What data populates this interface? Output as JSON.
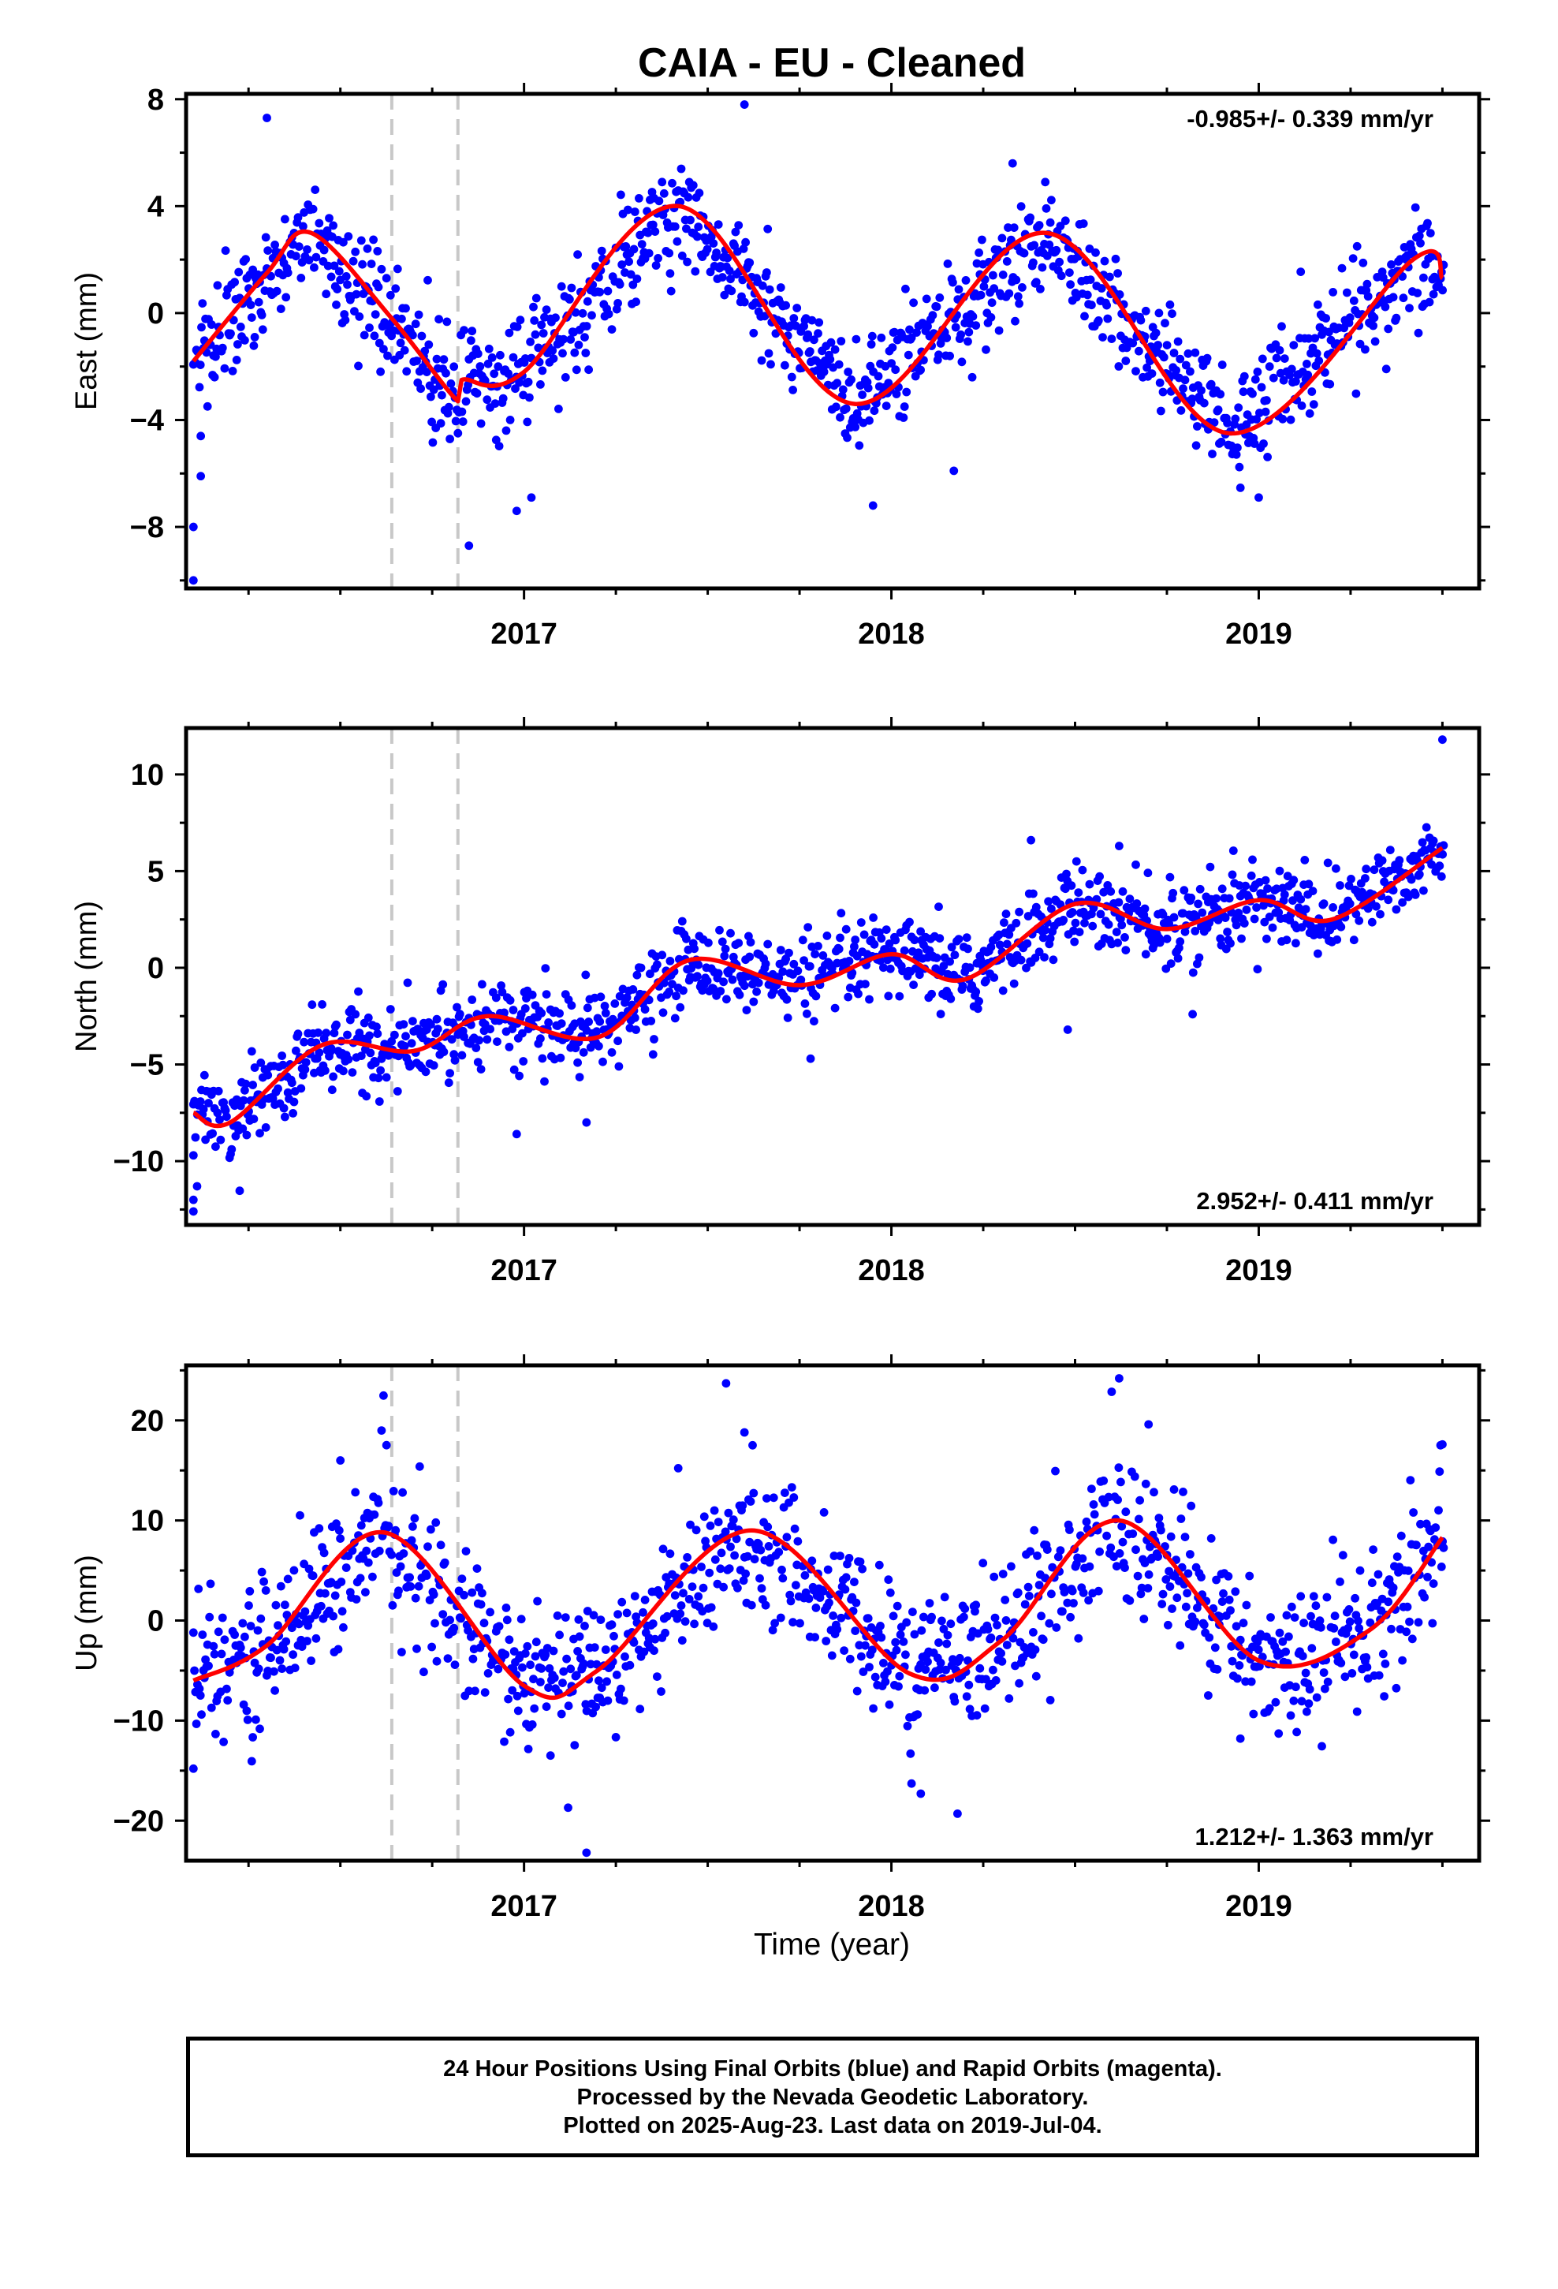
{
  "title": "CAIA  - EU - Cleaned",
  "xlabel": "Time (year)",
  "colors": {
    "data_points": "#0000ff",
    "model_curve": "#ff0000",
    "event_lines": "#c8c8c8",
    "axes": "#000000"
  },
  "caption": {
    "line1": "24 Hour Positions Using Final Orbits (blue) and Rapid Orbits (magenta).",
    "line2": "Processed by the Nevada Geodetic Laboratory.",
    "line3": "Plotted on 2025-Aug-23. Last data on 2019-Jul-04."
  },
  "chart_data": [
    {
      "type": "scatter",
      "name": "East",
      "ylabel": "East (mm)",
      "rate_label": "-0.985+/- 0.339 mm/yr",
      "rate_label_position": "top-right",
      "xlim": [
        2016.08,
        2019.6
      ],
      "ylim": [
        -10.3,
        8.2
      ],
      "yticks": [
        -8,
        -4,
        0,
        4,
        8
      ],
      "xticks": [
        2017,
        2018,
        2019
      ],
      "event_lines_x": [
        2016.64,
        2016.82
      ],
      "model": {
        "mean": 0.4,
        "rate": -0.985,
        "t0": 2017.8,
        "annual_cos": -2.55,
        "annual_sin": -2.45,
        "semiannual_cos": 0.3,
        "semiannual_sin": 0.2,
        "offset_at": 2016.82,
        "offset": 1.2,
        "start_transient": {
          "amplitude": -6,
          "tau": 0.03
        }
      },
      "samples": [
        {
          "x": 2016.1,
          "y": -1.8
        },
        {
          "x": 2016.3,
          "y": 1.5
        },
        {
          "x": 2016.42,
          "y": 3.0
        },
        {
          "x": 2016.64,
          "y": -0.2
        },
        {
          "x": 2016.82,
          "y": -3.3
        },
        {
          "x": 2016.83,
          "y": -2.5
        },
        {
          "x": 2017.0,
          "y": -2.2
        },
        {
          "x": 2017.42,
          "y": 4.0
        },
        {
          "x": 2017.9,
          "y": -3.4
        },
        {
          "x": 2018.42,
          "y": 3.0
        },
        {
          "x": 2018.92,
          "y": -4.5
        },
        {
          "x": 2019.42,
          "y": 2.0
        },
        {
          "x": 2019.5,
          "y": 1.3
        }
      ],
      "outliers": [
        {
          "x": 2016.1,
          "y": -10.0
        },
        {
          "x": 2016.1,
          "y": -8.0
        },
        {
          "x": 2016.12,
          "y": -6.1
        },
        {
          "x": 2016.12,
          "y": -4.6
        },
        {
          "x": 2016.3,
          "y": 7.3
        },
        {
          "x": 2016.85,
          "y": -8.7
        },
        {
          "x": 2016.98,
          "y": -7.4
        },
        {
          "x": 2017.02,
          "y": -6.9
        },
        {
          "x": 2017.6,
          "y": 7.8
        },
        {
          "x": 2017.95,
          "y": -7.2
        },
        {
          "x": 2018.17,
          "y": -5.9
        },
        {
          "x": 2019.0,
          "y": -6.9
        },
        {
          "x": 2018.33,
          "y": 5.6
        },
        {
          "x": 2018.22,
          "y": -2.4
        }
      ]
    },
    {
      "type": "scatter",
      "name": "North",
      "ylabel": "North (mm)",
      "rate_label": "2.952+/- 0.411 mm/yr",
      "rate_label_position": "bottom-right",
      "xlim": [
        2016.08,
        2019.6
      ],
      "ylim": [
        -13.3,
        12.4
      ],
      "yticks": [
        -10,
        -5,
        0,
        5,
        10
      ],
      "xticks": [
        2017,
        2018,
        2019
      ],
      "event_lines_x": [
        2016.64,
        2016.82
      ],
      "model": {
        "mean": 0.0,
        "rate": 2.952,
        "t0": 2017.8,
        "annual_cos": -0.6,
        "annual_sin": 0.9,
        "semiannual_cos": 0.8,
        "semiannual_sin": 0.2,
        "offset_at": 2016.64,
        "offset": 0.5,
        "start_transient": {
          "amplitude": 0,
          "tau": 0.03
        }
      },
      "samples": [
        {
          "x": 2016.1,
          "y": -7.5
        },
        {
          "x": 2016.2,
          "y": -8.0
        },
        {
          "x": 2016.45,
          "y": -4.0
        },
        {
          "x": 2016.7,
          "y": -4.3
        },
        {
          "x": 2016.9,
          "y": -2.5
        },
        {
          "x": 2017.2,
          "y": -3.6
        },
        {
          "x": 2017.45,
          "y": 0.4
        },
        {
          "x": 2017.75,
          "y": -0.9
        },
        {
          "x": 2018.0,
          "y": 0.7
        },
        {
          "x": 2018.2,
          "y": -0.6
        },
        {
          "x": 2018.5,
          "y": 3.3
        },
        {
          "x": 2018.75,
          "y": 2.0
        },
        {
          "x": 2019.0,
          "y": 3.5
        },
        {
          "x": 2019.2,
          "y": 2.5
        },
        {
          "x": 2019.5,
          "y": 6.2
        }
      ],
      "outliers": [
        {
          "x": 2016.1,
          "y": -12.6
        },
        {
          "x": 2016.1,
          "y": -12.0
        },
        {
          "x": 2016.11,
          "y": -11.3
        },
        {
          "x": 2016.1,
          "y": -9.7
        },
        {
          "x": 2016.98,
          "y": -8.6
        },
        {
          "x": 2017.17,
          "y": -8.0
        },
        {
          "x": 2017.78,
          "y": -4.7
        },
        {
          "x": 2018.48,
          "y": -3.2
        },
        {
          "x": 2018.82,
          "y": -2.4
        },
        {
          "x": 2019.5,
          "y": 11.8
        },
        {
          "x": 2018.38,
          "y": 6.6
        },
        {
          "x": 2018.62,
          "y": 6.3
        }
      ]
    },
    {
      "type": "scatter",
      "name": "Up",
      "ylabel": "Up (mm)",
      "rate_label": "1.212+/- 1.363 mm/yr",
      "rate_label_position": "bottom-right",
      "xlim": [
        2016.08,
        2019.6
      ],
      "ylim": [
        -24.0,
        25.5
      ],
      "yticks": [
        -20,
        -10,
        0,
        10,
        20
      ],
      "xticks": [
        2017,
        2018,
        2019
      ],
      "event_lines_x": [
        2016.64,
        2016.82
      ],
      "model": {
        "mean": 0.8,
        "rate": 1.212,
        "t0": 2017.8,
        "annual_cos": -4.7,
        "annual_sin": 6.4,
        "semiannual_cos": 0.0,
        "semiannual_sin": 0.0,
        "offset_at": 2016.64,
        "offset": 0.0,
        "start_transient": {
          "amplitude": 0,
          "tau": 0.03
        }
      },
      "samples": [
        {
          "x": 2016.1,
          "y": -6.0
        },
        {
          "x": 2016.3,
          "y": -2.5
        },
        {
          "x": 2016.62,
          "y": 8.8
        },
        {
          "x": 2017.0,
          "y": -6.5
        },
        {
          "x": 2017.2,
          "y": -5.0
        },
        {
          "x": 2017.62,
          "y": 9.0
        },
        {
          "x": 2018.05,
          "y": -5.3
        },
        {
          "x": 2018.3,
          "y": -2.0
        },
        {
          "x": 2018.62,
          "y": 10.0
        },
        {
          "x": 2019.0,
          "y": -4.0
        },
        {
          "x": 2019.3,
          "y": -1.0
        },
        {
          "x": 2019.5,
          "y": 8.3
        }
      ],
      "outliers": [
        {
          "x": 2017.55,
          "y": 23.7
        },
        {
          "x": 2018.62,
          "y": 24.2
        },
        {
          "x": 2017.17,
          "y": -23.2
        },
        {
          "x": 2017.12,
          "y": -18.7
        },
        {
          "x": 2018.08,
          "y": -17.3
        },
        {
          "x": 2018.18,
          "y": -19.3
        },
        {
          "x": 2016.1,
          "y": -14.8
        },
        {
          "x": 2016.5,
          "y": 16.0
        },
        {
          "x": 2019.5,
          "y": 17.6
        },
        {
          "x": 2018.7,
          "y": 19.6
        },
        {
          "x": 2017.6,
          "y": 18.8
        },
        {
          "x": 2018.95,
          "y": -11.8
        }
      ]
    }
  ]
}
